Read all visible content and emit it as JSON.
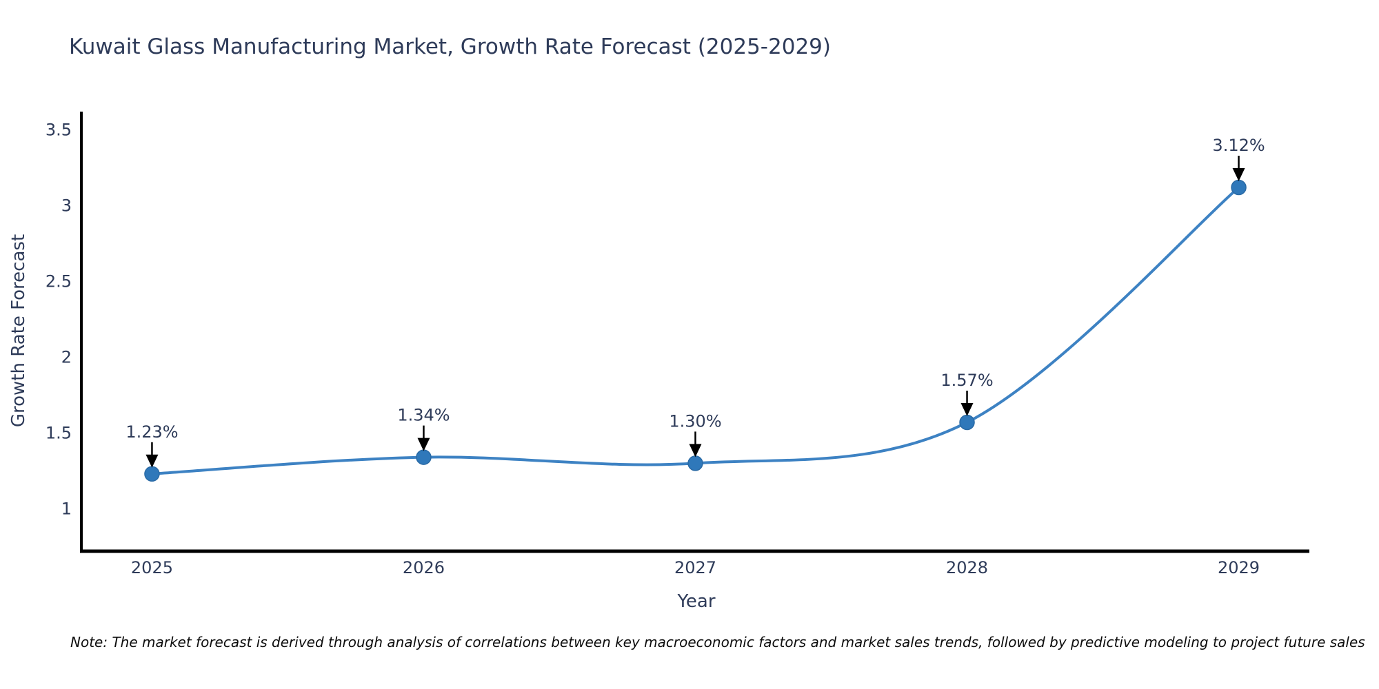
{
  "chart_data": {
    "type": "line",
    "title": "Kuwait Glass Manufacturing Market, Growth Rate Forecast (2025-2029)",
    "xlabel": "Year",
    "ylabel": "Growth Rate Forecast",
    "note": "Note: The market forecast is derived through analysis of correlations between key macroeconomic factors and market sales trends, followed by predictive modeling to project future sales",
    "x": [
      2025,
      2026,
      2027,
      2028,
      2029
    ],
    "values": [
      1.23,
      1.34,
      1.3,
      1.57,
      3.12
    ],
    "point_labels": [
      "1.23%",
      "1.34%",
      "1.30%",
      "1.57%",
      "3.12%"
    ],
    "xticks": [
      2025,
      2026,
      2027,
      2028,
      2029
    ],
    "yticks": [
      1,
      1.5,
      2,
      2.5,
      3,
      3.5
    ],
    "xlim": [
      2024.74,
      2029.26
    ],
    "ylim": [
      0.72,
      3.62
    ],
    "grid": false,
    "legend": "none",
    "smooth": true,
    "annotations_have_arrows": true,
    "line_color": "#3d82c3",
    "marker_color": "#2f78ba",
    "marker_edge_color": "#2a6aa5",
    "axis_color": "#000000",
    "text_color": "#2e3b59",
    "annotation_arrow_color": "#000000",
    "background_color": "#ffffff"
  }
}
